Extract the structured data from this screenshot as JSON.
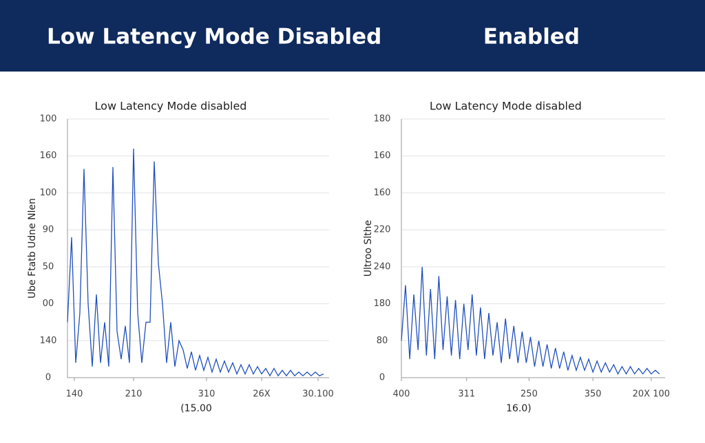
{
  "header": {
    "left": "Low Latency Mode Disabled",
    "right": "Enabled"
  },
  "chart_data": [
    {
      "type": "line",
      "title": "Low Latency Mode disabled",
      "y_label": "Ube Ftatb Udne Nlen",
      "x_label": "(15.00",
      "color": "#1f4fbf",
      "grid": true,
      "ylim": [
        0,
        140
      ],
      "yticks": [
        0,
        {
          "value": 20,
          "label": "140"
        },
        {
          "value": 40,
          "label": "00"
        },
        {
          "value": 60,
          "label": "50"
        },
        {
          "value": 80,
          "label": "90"
        },
        {
          "value": 100,
          "label": "100"
        },
        {
          "value": 120,
          "label": "160"
        },
        {
          "value": 140,
          "label": "100"
        }
      ],
      "xlim": [
        0,
        190
      ],
      "xticks": [
        {
          "value": 5,
          "label": "140"
        },
        {
          "value": 48,
          "label": "210"
        },
        {
          "value": 101,
          "label": "310"
        },
        {
          "value": 141,
          "label": "26X"
        },
        {
          "value": 182,
          "label": "30.100"
        }
      ],
      "x": [
        0,
        3,
        6,
        9,
        12,
        15,
        18,
        21,
        24,
        27,
        30,
        33,
        36,
        39,
        42,
        45,
        48,
        51,
        54,
        57,
        60,
        63,
        66,
        69,
        72,
        75,
        78,
        81,
        84,
        87,
        90,
        93,
        96,
        99,
        102,
        105,
        108,
        111,
        114,
        117,
        120,
        123,
        126,
        129,
        132,
        135,
        138,
        141,
        144,
        147,
        150,
        153,
        156,
        159,
        162,
        165,
        168,
        171,
        174,
        177,
        180,
        183,
        186
      ],
      "values": [
        30,
        76,
        8,
        35,
        113,
        40,
        6,
        45,
        8,
        30,
        6,
        114,
        25,
        10,
        28,
        8,
        124,
        35,
        8,
        30,
        30,
        117,
        62,
        40,
        8,
        30,
        6,
        20,
        15,
        5,
        14,
        4,
        12,
        4,
        11,
        3,
        10,
        3,
        9,
        3,
        8,
        2,
        7,
        2,
        7,
        2,
        6,
        2,
        5,
        1,
        5,
        1,
        4,
        1,
        4,
        1,
        3,
        1,
        3,
        1,
        3,
        1,
        2
      ]
    },
    {
      "type": "line",
      "title": "Low Latency Mode disabled",
      "y_label": "Ultroo Slthe",
      "x_label": "16.0)",
      "color": "#1f4fbf",
      "grid": true,
      "ylim": [
        0,
        140
      ],
      "yticks": [
        0,
        {
          "value": 20,
          "label": "80"
        },
        {
          "value": 40,
          "label": "180"
        },
        {
          "value": 60,
          "label": "240"
        },
        {
          "value": 80,
          "label": "220"
        },
        {
          "value": 100,
          "label": "160"
        },
        {
          "value": 120,
          "label": "160"
        },
        {
          "value": 140,
          "label": "180"
        }
      ],
      "xlim": [
        0,
        190
      ],
      "xticks": [
        {
          "value": 0,
          "label": "400"
        },
        {
          "value": 47,
          "label": "311"
        },
        {
          "value": 92,
          "label": "250"
        },
        {
          "value": 138,
          "label": "350"
        },
        {
          "value": 180,
          "label": "20X 100"
        }
      ],
      "x": [
        0,
        3,
        6,
        9,
        12,
        15,
        18,
        21,
        24,
        27,
        30,
        33,
        36,
        39,
        42,
        45,
        48,
        51,
        54,
        57,
        60,
        63,
        66,
        69,
        72,
        75,
        78,
        81,
        84,
        87,
        90,
        93,
        96,
        99,
        102,
        105,
        108,
        111,
        114,
        117,
        120,
        123,
        126,
        129,
        132,
        135,
        138,
        141,
        144,
        147,
        150,
        153,
        156,
        159,
        162,
        165,
        168,
        171,
        174,
        177,
        180,
        183,
        186
      ],
      "values": [
        20,
        50,
        10,
        45,
        15,
        60,
        12,
        48,
        10,
        55,
        15,
        44,
        12,
        42,
        10,
        40,
        15,
        45,
        12,
        38,
        10,
        35,
        12,
        30,
        8,
        32,
        10,
        28,
        8,
        25,
        8,
        22,
        6,
        20,
        6,
        18,
        5,
        16,
        5,
        14,
        4,
        12,
        4,
        11,
        4,
        10,
        3,
        9,
        3,
        8,
        3,
        7,
        2,
        6,
        2,
        6,
        2,
        5,
        2,
        5,
        2,
        4,
        2
      ]
    }
  ]
}
